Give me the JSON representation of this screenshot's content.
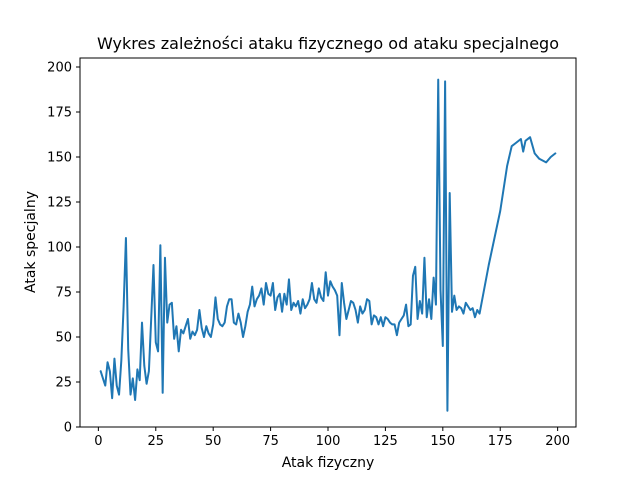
{
  "chart_data": {
    "type": "line",
    "title": "Wykres zależności ataku fizycznego od ataku specjalnego",
    "xlabel": "Atak fizyczny",
    "ylabel": "Atak specjalny",
    "xlim": [
      -8,
      208
    ],
    "ylim": [
      0,
      205
    ],
    "xticks": [
      0,
      25,
      50,
      75,
      100,
      125,
      150,
      175,
      200
    ],
    "yticks": [
      0,
      25,
      50,
      75,
      100,
      125,
      150,
      175,
      200
    ],
    "grid": false,
    "legend": "none",
    "series": [
      {
        "color": "#1f77b4",
        "x": [
          1,
          2,
          3,
          4,
          5,
          6,
          7,
          8,
          9,
          10,
          11,
          12,
          13,
          14,
          15,
          16,
          17,
          18,
          19,
          20,
          21,
          22,
          23,
          24,
          25,
          26,
          27,
          28,
          29,
          30,
          31,
          32,
          33,
          34,
          35,
          36,
          37,
          38,
          39,
          40,
          41,
          42,
          43,
          44,
          45,
          46,
          47,
          48,
          49,
          50,
          51,
          52,
          53,
          54,
          55,
          56,
          57,
          58,
          59,
          60,
          61,
          62,
          63,
          64,
          65,
          66,
          67,
          68,
          69,
          70,
          71,
          72,
          73,
          74,
          75,
          76,
          77,
          78,
          79,
          80,
          81,
          82,
          83,
          84,
          85,
          86,
          87,
          88,
          89,
          90,
          91,
          92,
          93,
          94,
          95,
          96,
          97,
          98,
          99,
          100,
          101,
          102,
          103,
          104,
          105,
          106,
          107,
          108,
          109,
          110,
          111,
          112,
          113,
          114,
          115,
          116,
          117,
          118,
          119,
          120,
          121,
          122,
          123,
          124,
          125,
          126,
          127,
          128,
          129,
          130,
          131,
          132,
          133,
          134,
          135,
          136,
          137,
          138,
          139,
          140,
          141,
          142,
          143,
          144,
          145,
          146,
          147,
          148,
          149,
          150,
          151,
          152,
          153,
          154,
          155,
          156,
          157,
          158,
          159,
          160,
          161,
          162,
          163,
          164,
          165,
          166,
          170,
          175,
          178,
          180,
          182,
          184,
          185,
          186,
          188,
          190,
          192,
          195,
          197,
          199
        ],
        "y": [
          31,
          27,
          23,
          36,
          31,
          16,
          38,
          23,
          18,
          37,
          67,
          105,
          43,
          18,
          27,
          15,
          32,
          26,
          58,
          34,
          24,
          31,
          60,
          90,
          47,
          42,
          101,
          19,
          94,
          58,
          68,
          69,
          49,
          56,
          42,
          54,
          52,
          56,
          60,
          49,
          53,
          51,
          54,
          65,
          55,
          50,
          56,
          52,
          50,
          57,
          72,
          60,
          57,
          56,
          58,
          67,
          71,
          71,
          58,
          57,
          63,
          58,
          50,
          56,
          64,
          68,
          78,
          67,
          71,
          73,
          77,
          68,
          80,
          74,
          73,
          80,
          65,
          72,
          74,
          64,
          74,
          68,
          82,
          65,
          69,
          67,
          70,
          63,
          71,
          66,
          68,
          71,
          80,
          71,
          69,
          77,
          72,
          70,
          86,
          73,
          81,
          78,
          76,
          73,
          51,
          80,
          69,
          60,
          65,
          70,
          69,
          65,
          58,
          67,
          63,
          65,
          71,
          70,
          57,
          62,
          61,
          57,
          61,
          56,
          61,
          60,
          58,
          57,
          57,
          51,
          58,
          60,
          62,
          68,
          56,
          57,
          84,
          89,
          60,
          70,
          63,
          94,
          61,
          71,
          60,
          83,
          68,
          193,
          76,
          45,
          192,
          9,
          130,
          64,
          73,
          65,
          67,
          66,
          63,
          69,
          67,
          65,
          66,
          61,
          65,
          63,
          90,
          120,
          145,
          156,
          158,
          160,
          153,
          159,
          161,
          152,
          149,
          147,
          150,
          152
        ]
      }
    ]
  }
}
